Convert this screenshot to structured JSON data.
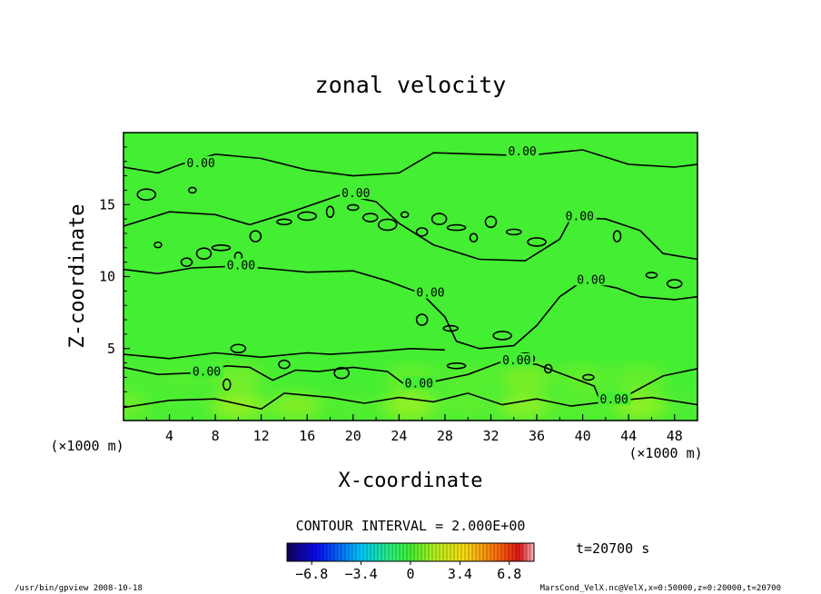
{
  "chart_data": {
    "type": "heatmap",
    "title": "zonal velocity",
    "xlabel": "X-coordinate",
    "ylabel": "Z-coordinate",
    "x_unit": "(×1000 m)",
    "y_unit": "(×1000 m)",
    "xlim": [
      0,
      50
    ],
    "ylim": [
      0,
      20
    ],
    "x_ticks": [
      "4",
      "8",
      "12",
      "16",
      "20",
      "24",
      "28",
      "32",
      "36",
      "40",
      "44",
      "48"
    ],
    "y_ticks": [
      "5",
      "10",
      "15"
    ],
    "contour_interval_text": "CONTOUR INTERVAL = 2.000E+00",
    "time_text": "t=20700 s",
    "colorbar": {
      "min": -8.5,
      "max": 8.5,
      "tick_labels": [
        "−6.8",
        "−3.4",
        "0",
        "3.4",
        "6.8"
      ],
      "tick_values": [
        -6.8,
        -3.4,
        0,
        3.4,
        6.8
      ]
    },
    "contour_labels": [
      {
        "x": 5.5,
        "z": 17.8,
        "text": "0.00"
      },
      {
        "x": 33.5,
        "z": 18.6,
        "text": "0.00"
      },
      {
        "x": 19.0,
        "z": 15.7,
        "text": "0.00"
      },
      {
        "x": 38.5,
        "z": 14.1,
        "text": "0.00"
      },
      {
        "x": 9.0,
        "z": 10.7,
        "text": "0.00"
      },
      {
        "x": 25.5,
        "z": 8.8,
        "text": "0.00"
      },
      {
        "x": 39.5,
        "z": 9.7,
        "text": "0.00"
      },
      {
        "x": 6.0,
        "z": 3.3,
        "text": "0.00"
      },
      {
        "x": 24.5,
        "z": 2.5,
        "text": "0.00"
      },
      {
        "x": 33.0,
        "z": 4.1,
        "text": "0.00"
      },
      {
        "x": 41.5,
        "z": 1.4,
        "text": "0.00"
      }
    ],
    "field_samples": {
      "x": [
        0,
        5,
        10,
        15,
        20,
        25,
        30,
        35,
        40,
        45,
        50
      ],
      "z": [
        1,
        3,
        5,
        8,
        11,
        14,
        17,
        19
      ],
      "values": [
        [
          0.8,
          0.2,
          1.5,
          1.2,
          0.3,
          1.5,
          0.5,
          1.3,
          0.4,
          1.4,
          0.2
        ],
        [
          0.2,
          0.3,
          0.9,
          0.1,
          0.0,
          0.6,
          0.4,
          1.0,
          0.6,
          0.6,
          0.1
        ],
        [
          0.0,
          0.1,
          0.0,
          0.1,
          0.0,
          0.1,
          0.0,
          0.0,
          0.1,
          0.0,
          0.0
        ],
        [
          0.0,
          0.0,
          0.1,
          0.0,
          0.0,
          0.0,
          0.0,
          0.1,
          0.0,
          0.0,
          0.0
        ],
        [
          0.1,
          0.0,
          0.0,
          0.0,
          0.1,
          0.0,
          0.0,
          0.0,
          0.0,
          0.1,
          0.0
        ],
        [
          0.0,
          0.1,
          0.0,
          0.1,
          0.0,
          0.1,
          0.1,
          0.0,
          0.0,
          0.0,
          0.0
        ],
        [
          0.1,
          0.0,
          0.0,
          0.0,
          0.0,
          0.0,
          0.0,
          0.0,
          0.1,
          0.0,
          0.0
        ],
        [
          0.0,
          0.0,
          0.0,
          0.0,
          0.0,
          0.0,
          0.0,
          0.0,
          0.0,
          0.0,
          0.0
        ]
      ]
    }
  },
  "footer": {
    "left": "/usr/bin/gpview  2008-10-18",
    "right": "MarsCond_VelX.nc@VelX,x=0:50000,z=0:20000,t=20700"
  },
  "colors": {
    "background": "#ffffff",
    "neutral_field": "#44ee33",
    "contour_line": "#000000"
  }
}
